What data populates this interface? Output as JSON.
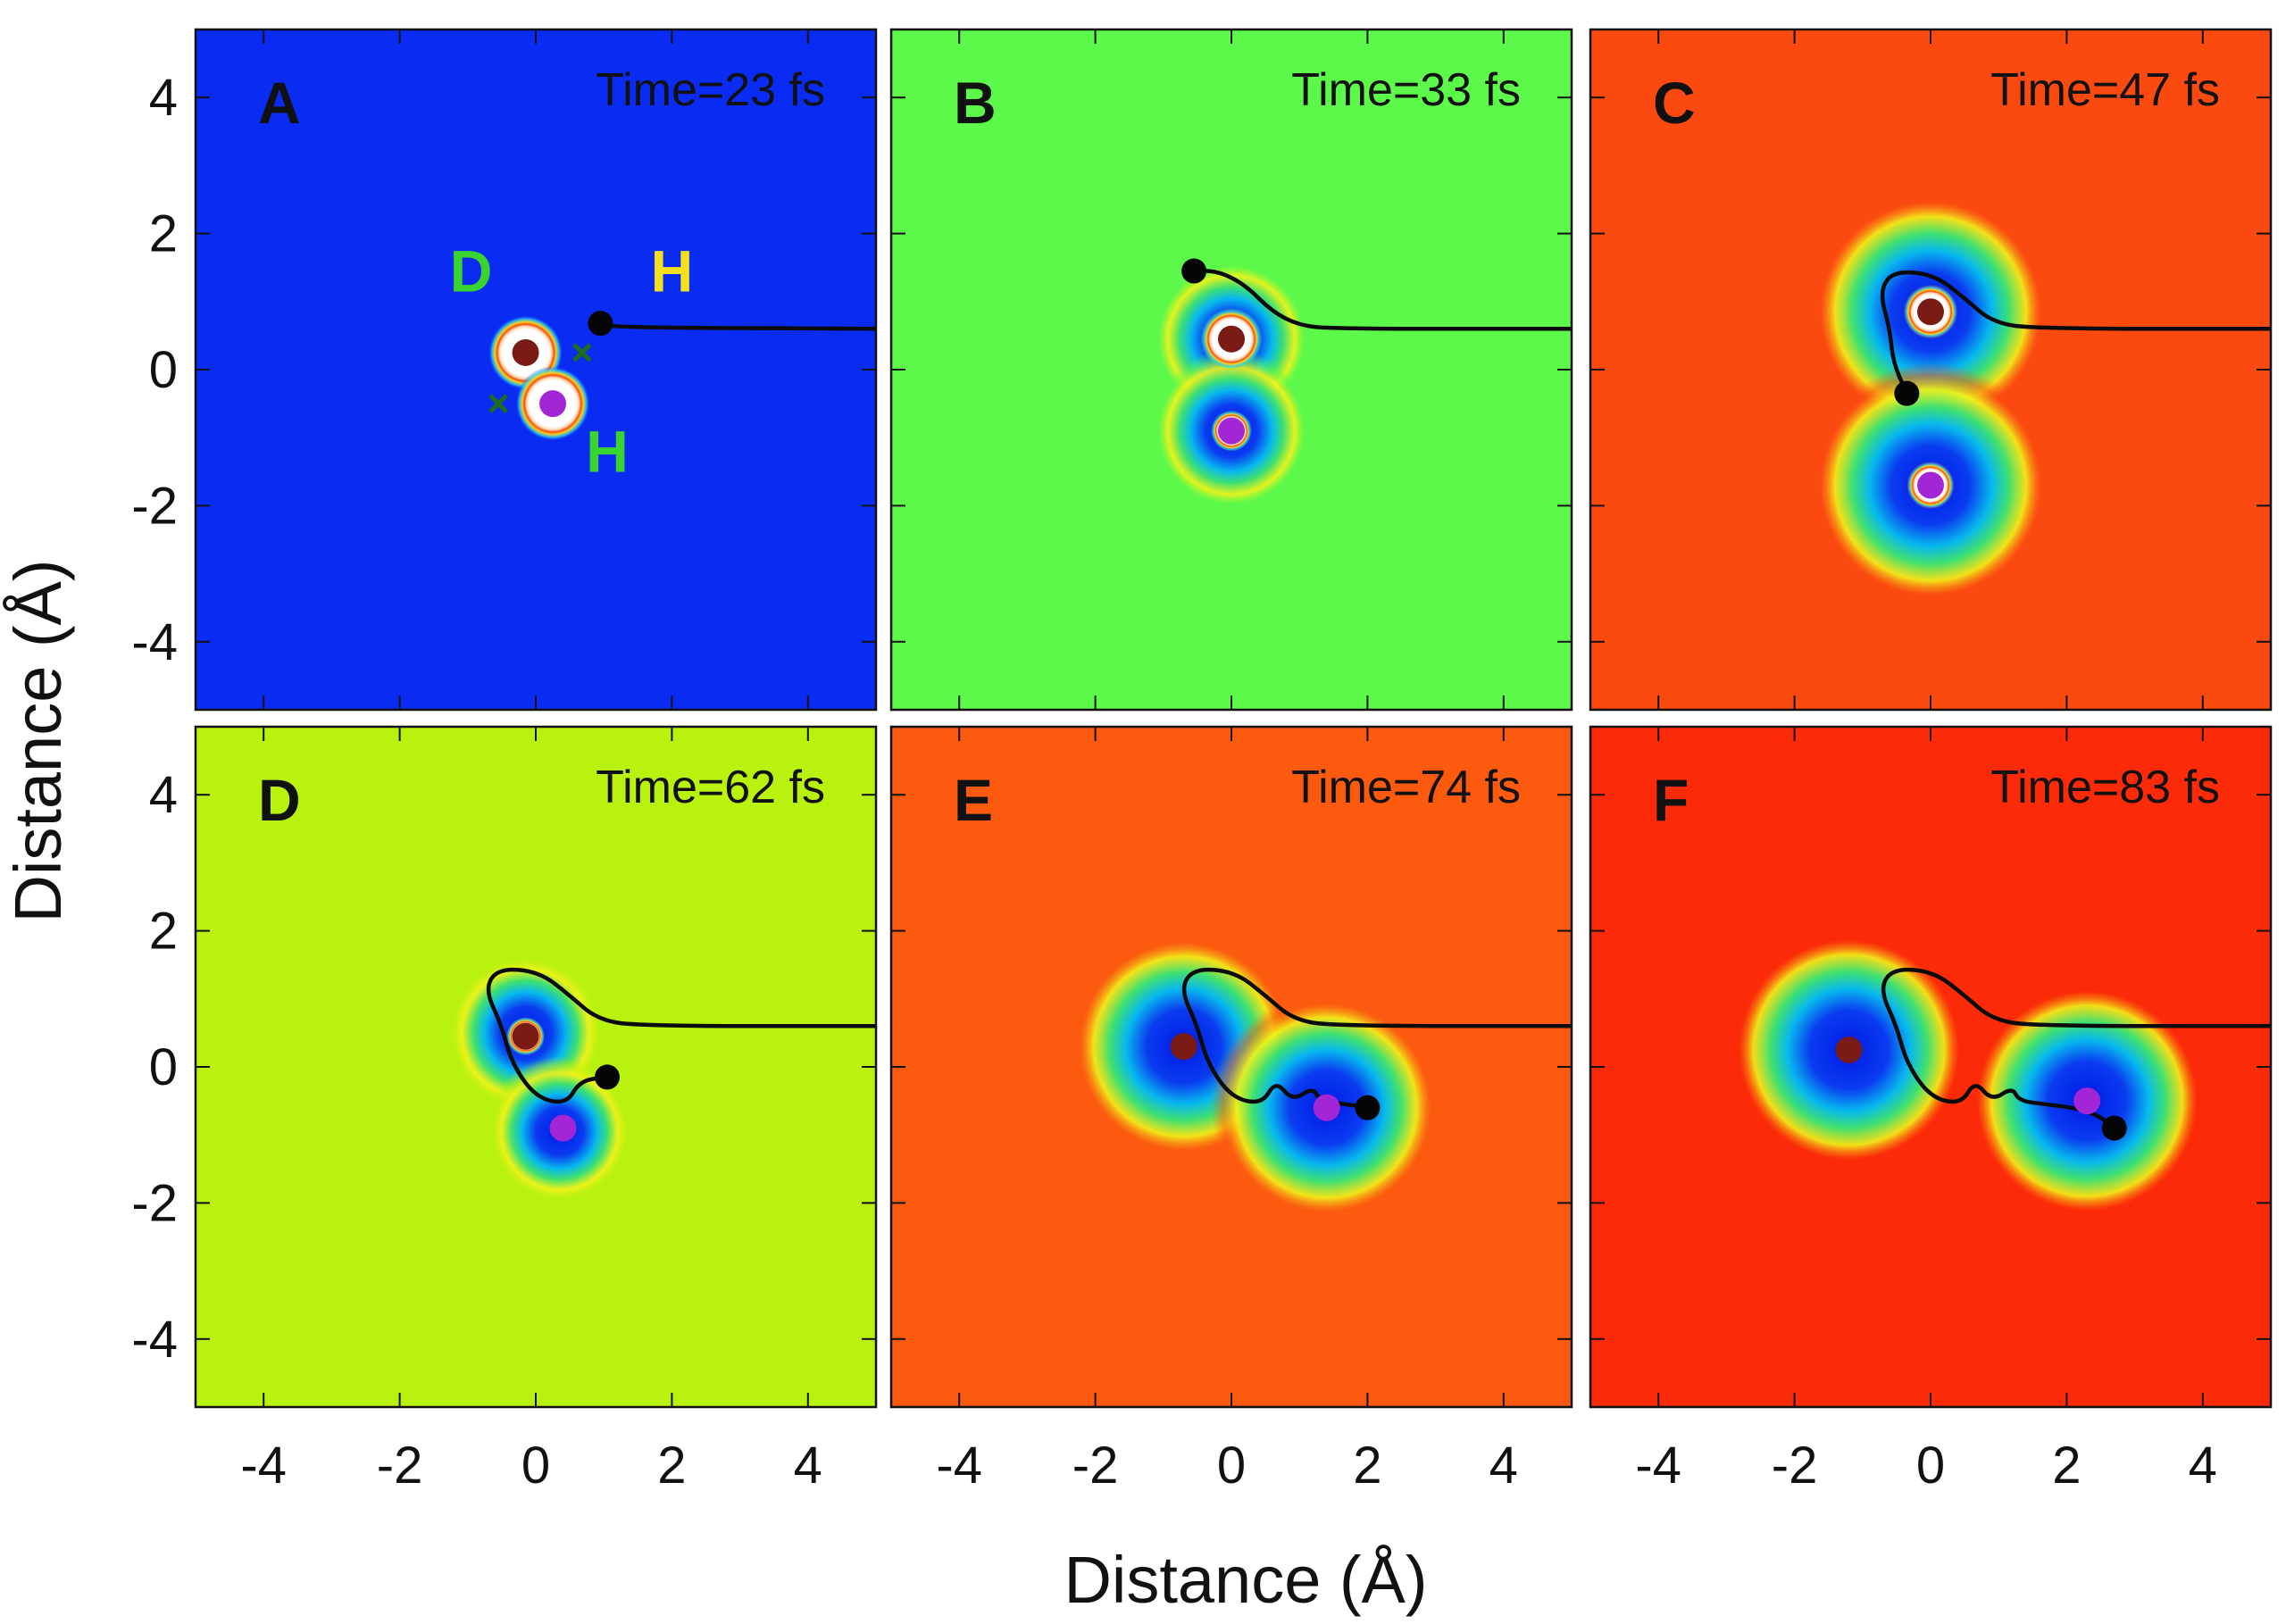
{
  "figure": {
    "xlabel": "Distance (Å)",
    "ylabel": "Distance (Å)",
    "xticks": [
      -4,
      -2,
      0,
      2,
      4
    ],
    "yticks": [
      4,
      2,
      0,
      -2,
      -4
    ]
  },
  "chart_data": [
    {
      "type": "heatmap",
      "panel": "A",
      "time_label": "Time=23 fs",
      "xlim": [
        -5,
        5
      ],
      "ylim": [
        -5,
        5
      ],
      "background": "#0a2bf2",
      "atom_labels": [
        {
          "text": "D",
          "x": -0.95,
          "y": 1.15,
          "color": "#39d42e"
        },
        {
          "text": "H",
          "x": 2.0,
          "y": 1.15,
          "color": "#f4e11c"
        },
        {
          "text": "H",
          "x": 1.05,
          "y": -1.5,
          "color": "#39d42e"
        }
      ],
      "cross_marks": [
        {
          "x": 0.68,
          "y": 0.25
        },
        {
          "x": -0.55,
          "y": -0.5
        }
      ],
      "wells": [],
      "nucleus_wells": [
        {
          "x": -0.15,
          "y": 0.25,
          "r": 0.55
        },
        {
          "x": 0.25,
          "y": -0.5,
          "r": 0.55
        }
      ],
      "nuclei": [
        {
          "species": "D",
          "x": -0.15,
          "y": 0.25,
          "color": "#7a1c15"
        },
        {
          "species": "H",
          "x": 0.25,
          "y": -0.5,
          "color": "#a326d6"
        }
      ],
      "trajectory": [
        [
          5,
          0.6
        ],
        [
          1.15,
          0.62
        ],
        [
          0.95,
          0.68
        ]
      ],
      "trajectory_end": {
        "x": 0.95,
        "y": 0.68
      }
    },
    {
      "type": "heatmap",
      "panel": "B",
      "time_label": "Time=33 fs",
      "xlim": [
        -5,
        5
      ],
      "ylim": [
        -5,
        5
      ],
      "background": "#5cf94a",
      "atom_labels": [],
      "cross_marks": [],
      "wells": [
        {
          "x": 0,
          "y": 0.45,
          "r": 1.2
        },
        {
          "x": 0,
          "y": -0.9,
          "r": 1.2
        }
      ],
      "nucleus_wells": [
        {
          "x": 0,
          "y": 0.45,
          "r": 0.45
        },
        {
          "x": 0,
          "y": -0.9,
          "r": 0.3
        }
      ],
      "nuclei": [
        {
          "species": "D",
          "x": 0,
          "y": 0.45,
          "color": "#7a1c15"
        },
        {
          "species": "H",
          "x": 0,
          "y": -0.9,
          "color": "#a326d6"
        }
      ],
      "trajectory": [
        [
          5,
          0.6
        ],
        [
          1.5,
          0.6
        ],
        [
          1.0,
          0.65
        ],
        [
          0.6,
          0.85
        ],
        [
          0.2,
          1.25
        ],
        [
          -0.2,
          1.45
        ],
        [
          -0.55,
          1.45
        ]
      ],
      "trajectory_end": {
        "x": -0.55,
        "y": 1.45
      }
    },
    {
      "type": "heatmap",
      "panel": "C",
      "time_label": "Time=47 fs",
      "xlim": [
        -5,
        5
      ],
      "ylim": [
        -5,
        5
      ],
      "background": "#fb4a10",
      "atom_labels": [],
      "cross_marks": [],
      "wells": [
        {
          "x": 0,
          "y": 0.85,
          "r": 1.8
        },
        {
          "x": 0,
          "y": -1.7,
          "r": 1.8
        }
      ],
      "nucleus_wells": [
        {
          "x": 0,
          "y": 0.85,
          "r": 0.4
        },
        {
          "x": 0,
          "y": -1.7,
          "r": 0.35
        }
      ],
      "nuclei": [
        {
          "species": "D",
          "x": 0,
          "y": 0.85,
          "color": "#7a1c15"
        },
        {
          "species": "H",
          "x": 0,
          "y": -1.7,
          "color": "#a326d6"
        }
      ],
      "trajectory": [
        [
          5,
          0.6
        ],
        [
          1.5,
          0.6
        ],
        [
          0.9,
          0.7
        ],
        [
          0.5,
          1.05
        ],
        [
          0.05,
          1.4
        ],
        [
          -0.55,
          1.45
        ],
        [
          -0.75,
          1.15
        ],
        [
          -0.6,
          0.6
        ],
        [
          -0.55,
          0.1
        ],
        [
          -0.35,
          -0.35
        ]
      ],
      "trajectory_end": {
        "x": -0.35,
        "y": -0.35
      }
    },
    {
      "type": "heatmap",
      "panel": "D",
      "time_label": "Time=62 fs",
      "xlim": [
        -5,
        5
      ],
      "ylim": [
        -5,
        5
      ],
      "background": "#b9f20f",
      "atom_labels": [],
      "cross_marks": [],
      "wells": [
        {
          "x": -0.15,
          "y": 0.5,
          "r": 1.2
        },
        {
          "x": 0.35,
          "y": -0.95,
          "r": 1.1
        }
      ],
      "nucleus_wells": [
        {
          "x": -0.15,
          "y": 0.45,
          "r": 0.28
        }
      ],
      "nuclei": [
        {
          "species": "D",
          "x": -0.15,
          "y": 0.45,
          "color": "#7a1c15"
        },
        {
          "species": "H",
          "x": 0.4,
          "y": -0.9,
          "color": "#a326d6"
        }
      ],
      "trajectory": [
        [
          5,
          0.6
        ],
        [
          1.5,
          0.6
        ],
        [
          0.9,
          0.7
        ],
        [
          0.5,
          1.05
        ],
        [
          0.05,
          1.4
        ],
        [
          -0.55,
          1.45
        ],
        [
          -0.75,
          1.15
        ],
        [
          -0.5,
          0.6
        ],
        [
          -0.35,
          0.05
        ],
        [
          0,
          -0.45
        ],
        [
          0.45,
          -0.55
        ],
        [
          0.65,
          -0.2
        ],
        [
          1.05,
          -0.15
        ]
      ],
      "trajectory_end": {
        "x": 1.05,
        "y": -0.15
      }
    },
    {
      "type": "heatmap",
      "panel": "E",
      "time_label": "Time=74 fs",
      "xlim": [
        -5,
        5
      ],
      "ylim": [
        -5,
        5
      ],
      "background": "#fb5a0f",
      "atom_labels": [],
      "cross_marks": [],
      "wells": [
        {
          "x": -0.7,
          "y": 0.3,
          "r": 1.7
        },
        {
          "x": 1.4,
          "y": -0.6,
          "r": 1.7
        }
      ],
      "nucleus_wells": [],
      "nuclei": [
        {
          "species": "D",
          "x": -0.7,
          "y": 0.3,
          "color": "#7a1c15"
        },
        {
          "species": "H",
          "x": 1.4,
          "y": -0.6,
          "color": "#a326d6"
        }
      ],
      "trajectory": [
        [
          5,
          0.6
        ],
        [
          1.5,
          0.6
        ],
        [
          0.9,
          0.7
        ],
        [
          0.5,
          1.05
        ],
        [
          0.05,
          1.4
        ],
        [
          -0.55,
          1.45
        ],
        [
          -0.75,
          1.15
        ],
        [
          -0.5,
          0.6
        ],
        [
          -0.35,
          0.05
        ],
        [
          0,
          -0.45
        ],
        [
          0.45,
          -0.55
        ],
        [
          0.65,
          -0.2
        ],
        [
          0.9,
          -0.5
        ],
        [
          1.2,
          -0.3
        ],
        [
          1.3,
          -0.5
        ],
        [
          1.7,
          -0.55
        ],
        [
          2.0,
          -0.6
        ]
      ],
      "trajectory_end": {
        "x": 2.0,
        "y": -0.6
      }
    },
    {
      "type": "heatmap",
      "panel": "F",
      "time_label": "Time=83 fs",
      "xlim": [
        -5,
        5
      ],
      "ylim": [
        -5,
        5
      ],
      "background": "#fb2a08",
      "atom_labels": [],
      "cross_marks": [],
      "wells": [
        {
          "x": -1.2,
          "y": 0.25,
          "r": 1.8
        },
        {
          "x": 2.3,
          "y": -0.5,
          "r": 1.8
        }
      ],
      "nucleus_wells": [],
      "nuclei": [
        {
          "species": "D",
          "x": -1.2,
          "y": 0.25,
          "color": "#7a1c15"
        },
        {
          "species": "H",
          "x": 2.3,
          "y": -0.5,
          "color": "#a326d6"
        }
      ],
      "trajectory": [
        [
          5,
          0.6
        ],
        [
          1.5,
          0.6
        ],
        [
          0.9,
          0.7
        ],
        [
          0.5,
          1.05
        ],
        [
          0.05,
          1.4
        ],
        [
          -0.55,
          1.45
        ],
        [
          -0.75,
          1.15
        ],
        [
          -0.5,
          0.6
        ],
        [
          -0.35,
          0.05
        ],
        [
          0,
          -0.45
        ],
        [
          0.45,
          -0.55
        ],
        [
          0.65,
          -0.2
        ],
        [
          0.9,
          -0.5
        ],
        [
          1.2,
          -0.3
        ],
        [
          1.3,
          -0.5
        ],
        [
          1.7,
          -0.55
        ],
        [
          2.1,
          -0.6
        ],
        [
          2.45,
          -0.7
        ],
        [
          2.7,
          -0.9
        ]
      ],
      "trajectory_end": {
        "x": 2.7,
        "y": -0.9
      }
    }
  ]
}
